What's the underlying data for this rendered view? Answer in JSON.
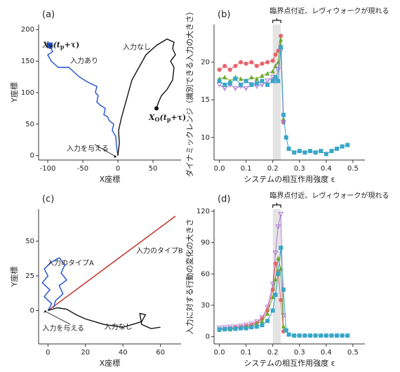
{
  "chart_data": [
    {
      "type": "line",
      "label": "(a)",
      "xlabel": "X座標",
      "ylabel": "Y座標",
      "xlim": [
        -113,
        90
      ],
      "xticks": [
        -100,
        -50,
        0,
        50
      ],
      "ylim": [
        -7,
        208
      ],
      "yticks": [
        0,
        50,
        100,
        150,
        200
      ],
      "series": [
        {
          "name": "入力あり",
          "color": "#1f4fd0",
          "x": [
            0,
            -2,
            -3,
            -8,
            -6,
            -12,
            -15,
            -20,
            -18,
            -25,
            -30,
            -28,
            -32,
            -30,
            -40,
            -45,
            -55,
            -60,
            -70,
            -85,
            -90,
            -95,
            -100,
            -93,
            -97
          ],
          "y": [
            0,
            15,
            30,
            40,
            50,
            55,
            62,
            65,
            75,
            80,
            85,
            95,
            100,
            110,
            115,
            118,
            125,
            130,
            140,
            140,
            145,
            150,
            160,
            165,
            175
          ]
        },
        {
          "name": "入力なし",
          "color": "#111111",
          "x": [
            0,
            2,
            1,
            5,
            10,
            15,
            20,
            30,
            40,
            55,
            70,
            80,
            78,
            82,
            75,
            80,
            78,
            70,
            62,
            58,
            55
          ],
          "y": [
            0,
            20,
            40,
            60,
            80,
            100,
            120,
            140,
            160,
            175,
            185,
            180,
            170,
            160,
            150,
            140,
            120,
            105,
            95,
            85,
            75
          ]
        }
      ],
      "points": [
        {
          "x": -97,
          "y": 175,
          "color": "#1f4fd0",
          "marker": "square"
        },
        {
          "x": 55,
          "y": 75,
          "color": "#111111",
          "marker": "circle"
        }
      ],
      "annotations": [
        {
          "parts": [
            "X",
            "P",
            "(t",
            "p",
            "+τ)"
          ],
          "color": "#111111"
        },
        {
          "parts": [
            "X",
            "O",
            "(t",
            "p",
            "+τ)"
          ],
          "color": "#111111"
        },
        {
          "text": "入力なし",
          "color": "#111111"
        },
        {
          "text": "入力あり",
          "color": "#1f4fd0"
        },
        {
          "text": "入力を与える",
          "color": "#111111"
        }
      ]
    },
    {
      "type": "line",
      "label": "(b)",
      "xlabel": "システムの相互作用強度 ε",
      "ylabel": "ダイナミックレンジ（識別できる入力の大きさ）",
      "annotation_top": "臨界点付近、レヴィウォークが現れる",
      "highlight_x": [
        0.2,
        0.23
      ],
      "xlim": [
        -0.02,
        0.545
      ],
      "xticks": [
        {
          "value": 0,
          "label": "0.0"
        },
        0.1,
        0.2,
        0.3,
        0.4,
        0.5
      ],
      "ylim": [
        7,
        25
      ],
      "yticks": [
        10,
        15,
        20
      ],
      "x": [
        0,
        0.02,
        0.04,
        0.06,
        0.08,
        0.1,
        0.12,
        0.14,
        0.16,
        0.18,
        0.2,
        0.21,
        0.22,
        0.23,
        0.24,
        0.25,
        0.26,
        0.28,
        0.3,
        0.32,
        0.34,
        0.36,
        0.38,
        0.4,
        0.42,
        0.44,
        0.46,
        0.48
      ],
      "series": [
        {
          "color": "#e8636a",
          "marker": "circle",
          "values": [
            19,
            19.5,
            19,
            19.5,
            20,
            19.8,
            20,
            19.5,
            19.8,
            20,
            20.2,
            21,
            21.5,
            23.5,
            12,
            null,
            null,
            null,
            null,
            null,
            null,
            null,
            null,
            null,
            null,
            null,
            null,
            null
          ]
        },
        {
          "color": "#6aaa2a",
          "marker": "triangle",
          "values": [
            17.8,
            18,
            17.5,
            18,
            17.8,
            17.5,
            18,
            17.8,
            18.2,
            18.5,
            18.8,
            19.5,
            20,
            23,
            12.5,
            null,
            null,
            null,
            null,
            null,
            null,
            null,
            null,
            null,
            null,
            null,
            null,
            null
          ]
        },
        {
          "color": "#b07ad8",
          "marker": "triangle-down",
          "values": [
            17,
            16.5,
            17,
            16.5,
            16.8,
            16.5,
            17,
            16.8,
            17,
            17.5,
            18,
            17.5,
            19,
            21.5,
            12,
            null,
            null,
            null,
            null,
            null,
            null,
            null,
            null,
            null,
            null,
            null,
            null,
            null
          ]
        },
        {
          "color": "#3aa6c8",
          "marker": "square",
          "values": [
            17.5,
            17,
            17.2,
            17.8,
            17,
            17.5,
            17,
            17.2,
            17.5,
            17,
            17.5,
            18,
            17.5,
            22,
            13,
            10,
            8.5,
            8,
            8.2,
            8,
            8.2,
            8,
            8.2,
            7.8,
            8.2,
            8.5,
            8.8,
            9
          ]
        }
      ]
    },
    {
      "type": "line",
      "label": "(c)",
      "xlabel": "X座標",
      "ylabel": "Y座標",
      "xlim": [
        -5,
        71
      ],
      "xticks": [
        0,
        20,
        40,
        60
      ],
      "ylim": [
        -24,
        73
      ],
      "yticks": [
        0,
        25,
        50
      ],
      "series": [
        {
          "name": "入力のタイプB",
          "color": "#c0231c",
          "x": [
            0,
            68
          ],
          "y": [
            0,
            68
          ]
        },
        {
          "name": "入力のタイプA",
          "color": "#1f4fd0",
          "x": [
            0,
            2,
            -2,
            1,
            -3,
            0,
            -2,
            2,
            6,
            9,
            7,
            10,
            6,
            8,
            4,
            3
          ],
          "y": [
            0,
            5,
            10,
            15,
            20,
            25,
            30,
            35,
            38,
            33,
            27,
            22,
            18,
            12,
            7,
            2
          ]
        },
        {
          "name": "入力なし",
          "color": "#111111",
          "x": [
            0,
            5,
            10,
            15,
            20,
            25,
            30,
            35,
            40,
            45,
            50,
            52,
            49,
            50,
            55,
            60
          ],
          "y": [
            0,
            2,
            1,
            -3,
            -6,
            -8,
            -10,
            -11,
            -12,
            -10,
            -8,
            -3,
            -2,
            -10,
            -13,
            -12
          ]
        }
      ],
      "points": [],
      "annotations": [
        {
          "text": "入力のタイプA",
          "color": "#1f4fd0"
        },
        {
          "text": "入力のタイプB",
          "color": "#c0231c"
        },
        {
          "text": "入力を与える",
          "color": "#111111"
        },
        {
          "text": "入力なし",
          "color": "#111111"
        }
      ]
    },
    {
      "type": "line",
      "label": "(d)",
      "xlabel": "システムの相互作用強度 ε",
      "ylabel": "入力に対する行動の変化の大きさ",
      "annotation_top": "臨界点付近、レヴィウォークが現れる",
      "highlight_x": [
        0.2,
        0.23
      ],
      "xlim": [
        -0.02,
        0.545
      ],
      "xticks": [
        {
          "value": 0,
          "label": "0.0"
        },
        0.1,
        0.2,
        0.3,
        0.4,
        0.5
      ],
      "ylim": [
        -7,
        122
      ],
      "yticks": [
        0,
        30,
        60,
        90,
        120
      ],
      "x": [
        0,
        0.02,
        0.04,
        0.06,
        0.08,
        0.1,
        0.12,
        0.14,
        0.16,
        0.18,
        0.2,
        0.21,
        0.22,
        0.23,
        0.24,
        0.25,
        0.26,
        0.28,
        0.3,
        0.32,
        0.34,
        0.36,
        0.38,
        0.4,
        0.42,
        0.44,
        0.46,
        0.48
      ],
      "series": [
        {
          "color": "#b07ad8",
          "marker": "triangle-down",
          "values": [
            8,
            8.5,
            9,
            9,
            10,
            11,
            12,
            14,
            18,
            28,
            50,
            80,
            105,
            117,
            20,
            null,
            null,
            null,
            null,
            null,
            null,
            null,
            null,
            null,
            null,
            null,
            null,
            null
          ]
        },
        {
          "color": "#e8636a",
          "marker": "circle",
          "values": [
            7,
            7.5,
            8,
            8.5,
            9,
            10,
            11,
            13,
            17,
            25,
            45,
            70,
            62,
            35,
            5,
            null,
            null,
            null,
            null,
            null,
            null,
            null,
            null,
            null,
            null,
            null,
            null,
            null
          ]
        },
        {
          "color": "#6aaa2a",
          "marker": "triangle",
          "values": [
            6.5,
            7,
            7,
            7.5,
            8,
            9,
            10,
            12,
            15,
            22,
            38,
            55,
            75,
            65,
            10,
            null,
            null,
            null,
            null,
            null,
            null,
            null,
            null,
            null,
            null,
            null,
            null,
            null
          ]
        },
        {
          "color": "#3aa6c8",
          "marker": "square",
          "values": [
            7,
            7,
            7.5,
            7.5,
            8,
            8,
            9,
            9.5,
            11,
            15,
            25,
            40,
            60,
            85,
            45,
            6,
            2,
            1,
            1,
            1,
            1,
            1,
            1,
            1,
            1,
            1,
            1,
            1
          ]
        }
      ]
    }
  ]
}
